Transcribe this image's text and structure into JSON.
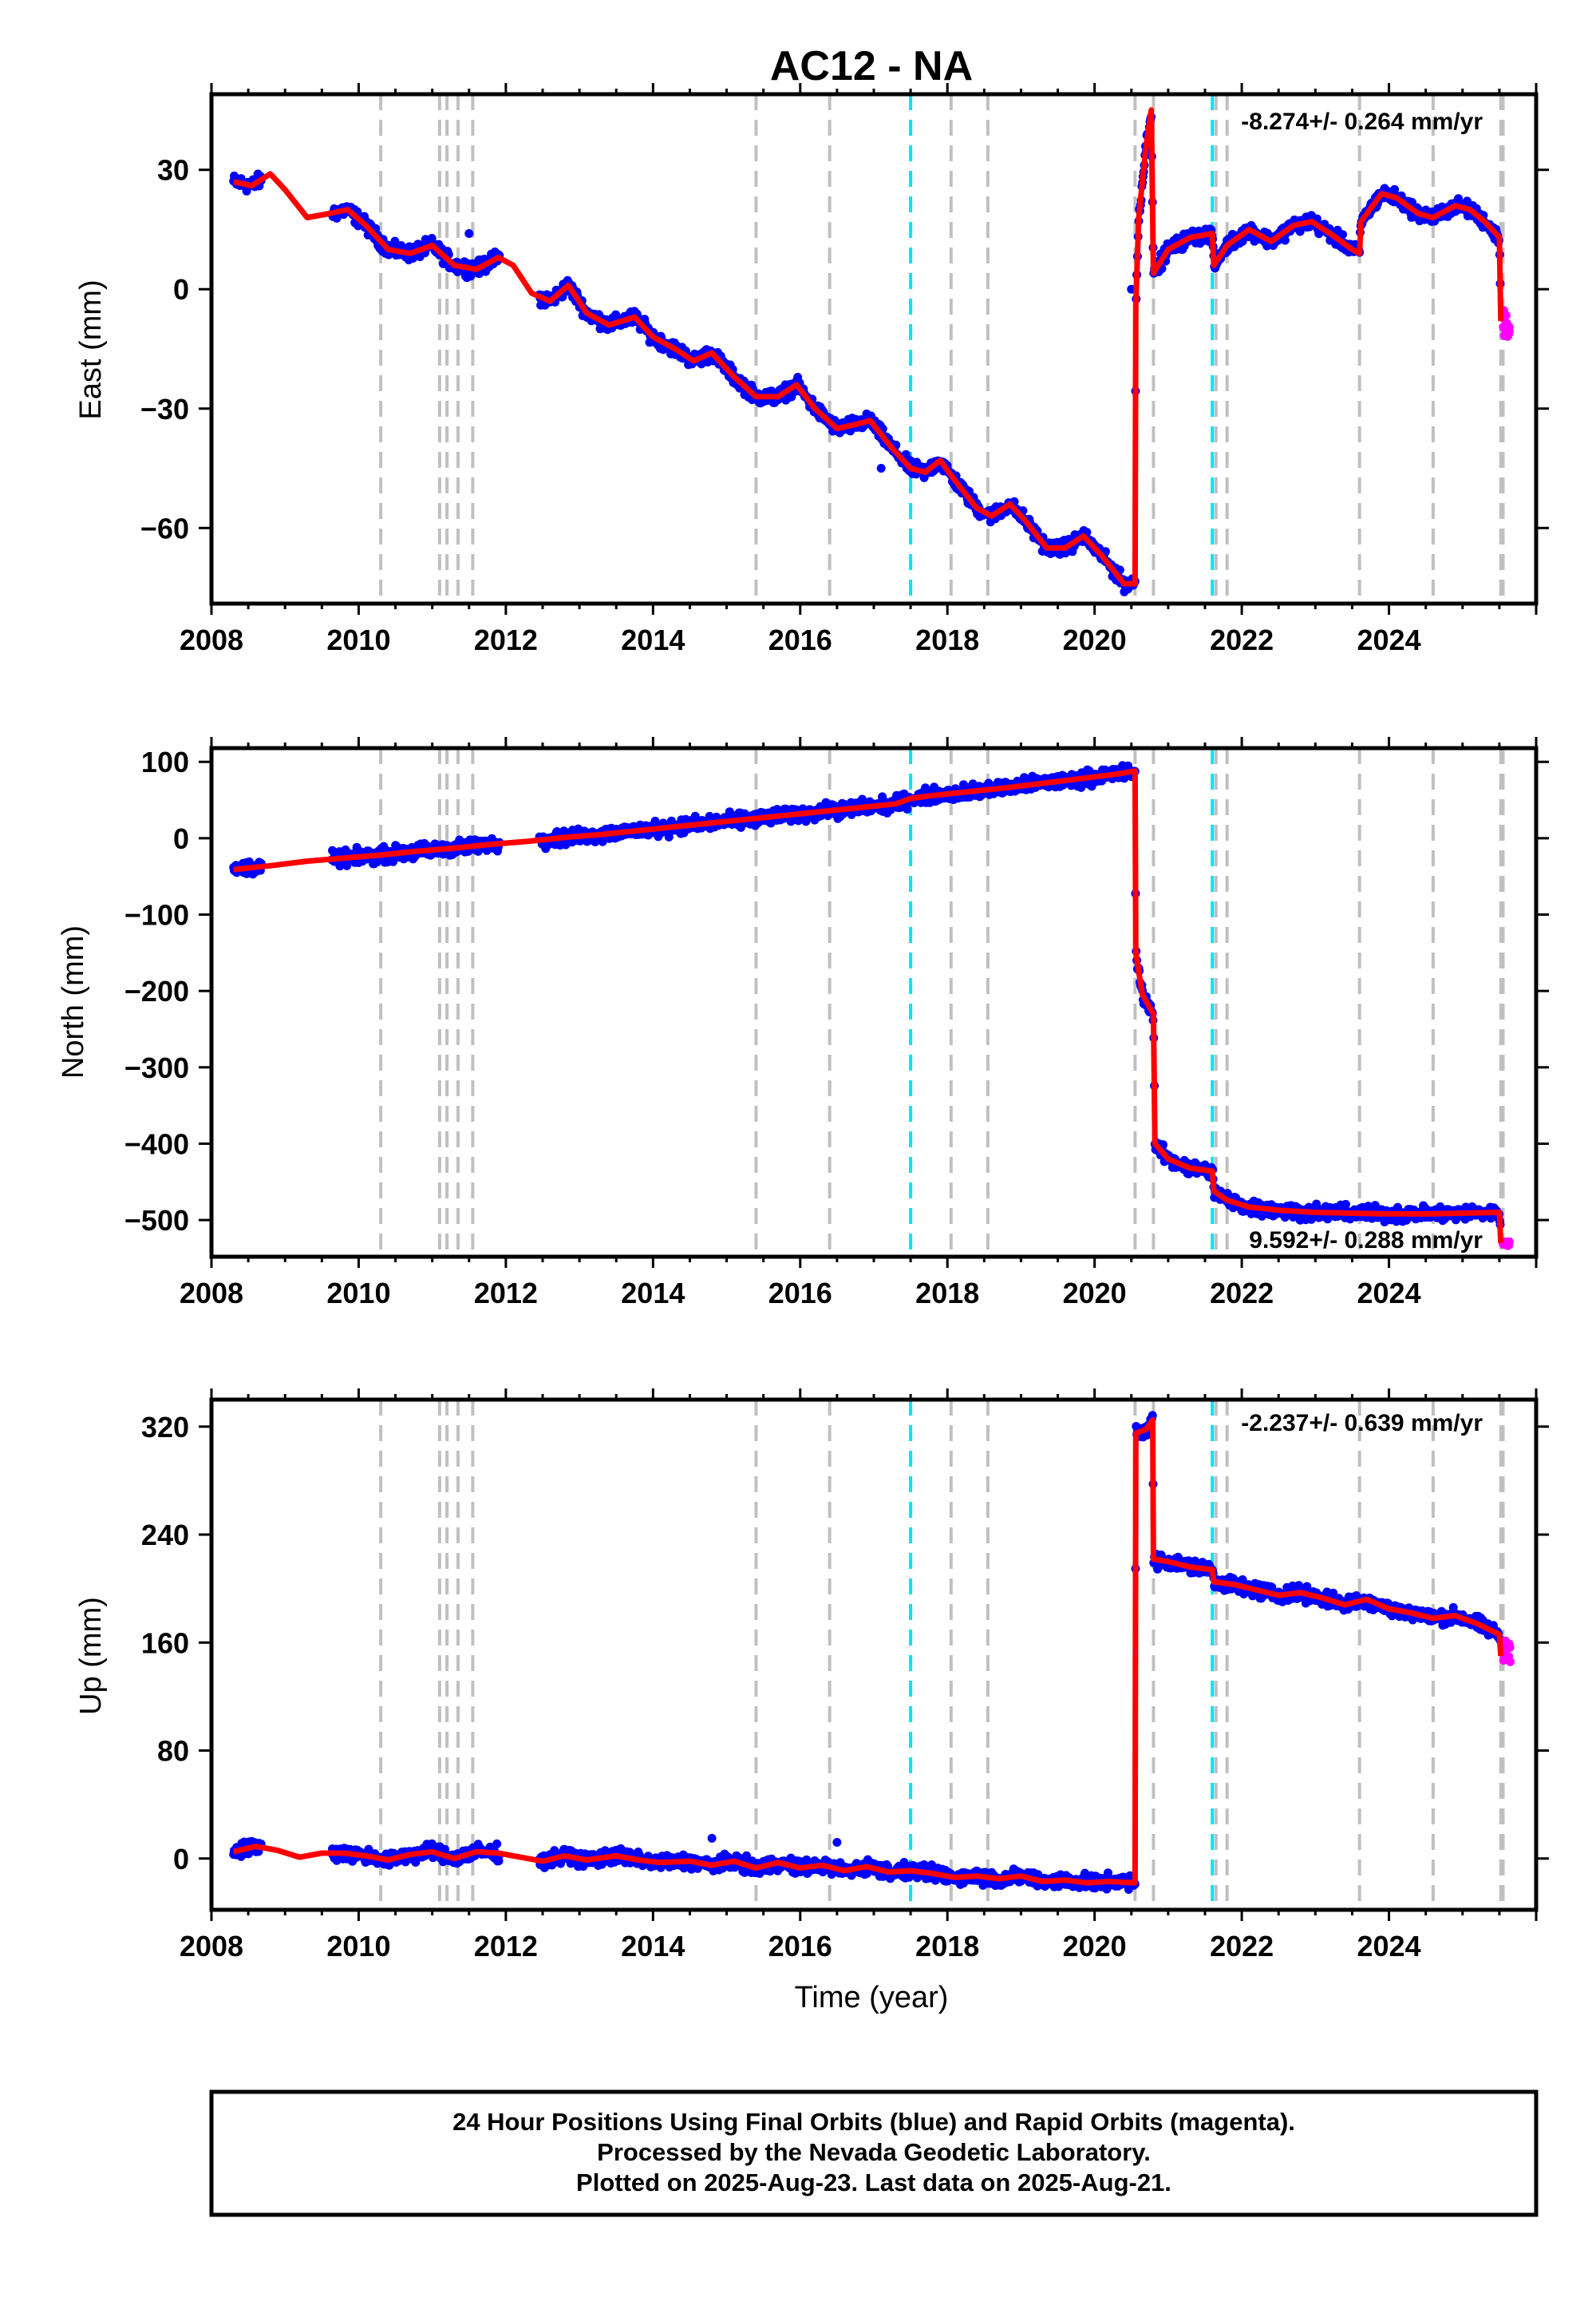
{
  "title": "AC12 - NA",
  "xlabel": "Time (year)",
  "colors": {
    "final_points": "#0000ff",
    "rapid_points": "#ff00ff",
    "model": "#ff0000",
    "event_line": "#c0c0c0",
    "eq_line": "#00e5ee"
  },
  "footer": {
    "line1": "24 Hour Positions Using Final Orbits (blue) and Rapid Orbits (magenta).",
    "line2": "Processed by the Nevada Geodetic Laboratory.",
    "line3": "Plotted on 2025-Aug-23. Last data on 2025-Aug-21."
  },
  "chart_data": [
    {
      "type": "scatter",
      "panel": "East",
      "ylabel": "East (mm)",
      "rate_text": "-8.274+/- 0.264 mm/yr",
      "rate_position": "top-right",
      "xlim": [
        2008.0,
        2026.0
      ],
      "ylim": [
        -79,
        49
      ],
      "x_ticks": [
        2008,
        2010,
        2012,
        2014,
        2016,
        2018,
        2020,
        2022,
        2024
      ],
      "y_ticks": [
        -60,
        -30,
        0,
        30
      ],
      "y_tick_labels": [
        "−60",
        "−30",
        "0",
        "30"
      ],
      "grid": false,
      "event_lines_gray": [
        2010.3,
        2011.1,
        2011.2,
        2011.35,
        2011.55,
        2015.4,
        2016.4,
        2018.05,
        2018.55,
        2020.55,
        2020.8,
        2021.65,
        2021.8,
        2023.6,
        2024.6,
        2025.52,
        2025.55
      ],
      "event_lines_cyan": [
        2017.5,
        2021.6
      ],
      "model": [
        [
          2008.3,
          27
        ],
        [
          2008.55,
          26
        ],
        [
          2008.8,
          29
        ],
        [
          2009.0,
          25
        ],
        [
          2009.3,
          18
        ],
        [
          2009.6,
          19
        ],
        [
          2009.85,
          20
        ],
        [
          2010.1,
          16
        ],
        [
          2010.4,
          10
        ],
        [
          2010.7,
          9
        ],
        [
          2011.0,
          11
        ],
        [
          2011.3,
          6
        ],
        [
          2011.6,
          5
        ],
        [
          2011.9,
          8
        ],
        [
          2012.1,
          6
        ],
        [
          2012.35,
          -1
        ],
        [
          2012.6,
          -3
        ],
        [
          2012.85,
          1
        ],
        [
          2013.1,
          -6
        ],
        [
          2013.4,
          -9
        ],
        [
          2013.75,
          -7
        ],
        [
          2014.0,
          -12
        ],
        [
          2014.3,
          -15
        ],
        [
          2014.55,
          -18
        ],
        [
          2014.8,
          -16
        ],
        [
          2015.1,
          -22
        ],
        [
          2015.4,
          -27
        ],
        [
          2015.7,
          -27
        ],
        [
          2015.95,
          -24
        ],
        [
          2016.2,
          -30
        ],
        [
          2016.5,
          -35
        ],
        [
          2016.75,
          -34
        ],
        [
          2016.95,
          -33
        ],
        [
          2017.25,
          -40
        ],
        [
          2017.5,
          -45
        ],
        [
          2017.7,
          -46
        ],
        [
          2017.9,
          -43
        ],
        [
          2018.1,
          -48
        ],
        [
          2018.4,
          -55
        ],
        [
          2018.6,
          -57
        ],
        [
          2018.85,
          -54
        ],
        [
          2019.05,
          -58
        ],
        [
          2019.35,
          -65
        ],
        [
          2019.6,
          -65
        ],
        [
          2019.85,
          -62
        ],
        [
          2020.1,
          -67
        ],
        [
          2020.4,
          -74
        ],
        [
          2020.55,
          -74
        ],
        [
          2020.56,
          -4
        ],
        [
          2020.6,
          18
        ],
        [
          2020.7,
          36
        ],
        [
          2020.77,
          45
        ],
        [
          2020.8,
          4
        ],
        [
          2021.0,
          10
        ],
        [
          2021.3,
          13
        ],
        [
          2021.6,
          14
        ],
        [
          2021.62,
          6
        ],
        [
          2021.8,
          11
        ],
        [
          2022.1,
          15
        ],
        [
          2022.4,
          12
        ],
        [
          2022.7,
          16
        ],
        [
          2022.95,
          17
        ],
        [
          2023.2,
          14
        ],
        [
          2023.5,
          10
        ],
        [
          2023.6,
          9
        ],
        [
          2023.62,
          17
        ],
        [
          2023.9,
          24
        ],
        [
          2024.1,
          23
        ],
        [
          2024.4,
          19
        ],
        [
          2024.6,
          18
        ],
        [
          2024.9,
          21
        ],
        [
          2025.1,
          20
        ],
        [
          2025.3,
          17
        ],
        [
          2025.5,
          13
        ],
        [
          2025.52,
          -8
        ]
      ],
      "rapid_x_range": [
        2025.55,
        2025.65
      ],
      "rapid_y_range": [
        -12,
        -5
      ],
      "outliers": [
        [
          2011.5,
          14
        ],
        [
          2017.1,
          -45
        ],
        [
          2020.5,
          0
        ]
      ]
    },
    {
      "type": "scatter",
      "panel": "North",
      "ylabel": "North (mm)",
      "rate_text": "9.592+/- 0.288 mm/yr",
      "rate_position": "bottom-right",
      "xlim": [
        2008.0,
        2026.0
      ],
      "ylim": [
        -548,
        118
      ],
      "x_ticks": [
        2008,
        2010,
        2012,
        2014,
        2016,
        2018,
        2020,
        2022,
        2024
      ],
      "y_ticks": [
        -500,
        -400,
        -300,
        -200,
        -100,
        0,
        100
      ],
      "y_tick_labels": [
        "−500",
        "−400",
        "−300",
        "−200",
        "−100",
        "0",
        "100"
      ],
      "grid": false,
      "event_lines_gray": [
        2010.3,
        2011.1,
        2011.2,
        2011.35,
        2011.55,
        2015.4,
        2016.4,
        2018.05,
        2018.55,
        2020.55,
        2020.8,
        2021.65,
        2021.8,
        2023.6,
        2024.6,
        2025.52,
        2025.55
      ],
      "event_lines_cyan": [
        2017.5,
        2021.6
      ],
      "model": [
        [
          2008.3,
          -41
        ],
        [
          2008.8,
          -36
        ],
        [
          2009.3,
          -30
        ],
        [
          2009.8,
          -26
        ],
        [
          2010.3,
          -22
        ],
        [
          2010.8,
          -17
        ],
        [
          2011.3,
          -13
        ],
        [
          2011.8,
          -8
        ],
        [
          2012.3,
          -4
        ],
        [
          2012.8,
          1
        ],
        [
          2013.3,
          5
        ],
        [
          2013.8,
          10
        ],
        [
          2014.3,
          15
        ],
        [
          2014.8,
          20
        ],
        [
          2015.3,
          25
        ],
        [
          2015.8,
          30
        ],
        [
          2016.3,
          35
        ],
        [
          2016.8,
          40
        ],
        [
          2017.3,
          45
        ],
        [
          2017.5,
          52
        ],
        [
          2017.8,
          56
        ],
        [
          2018.3,
          61
        ],
        [
          2018.8,
          66
        ],
        [
          2019.3,
          72
        ],
        [
          2019.8,
          78
        ],
        [
          2020.3,
          84
        ],
        [
          2020.55,
          88
        ],
        [
          2020.56,
          -150
        ],
        [
          2020.65,
          -205
        ],
        [
          2020.8,
          -230
        ],
        [
          2020.82,
          -400
        ],
        [
          2021.0,
          -420
        ],
        [
          2021.3,
          -432
        ],
        [
          2021.6,
          -436
        ],
        [
          2021.62,
          -462
        ],
        [
          2021.8,
          -474
        ],
        [
          2022.1,
          -483
        ],
        [
          2022.5,
          -487
        ],
        [
          2023.0,
          -490
        ],
        [
          2023.5,
          -491
        ],
        [
          2024.0,
          -492
        ],
        [
          2024.5,
          -492
        ],
        [
          2025.0,
          -491
        ],
        [
          2025.5,
          -490
        ],
        [
          2025.52,
          -530
        ]
      ],
      "rapid_x_range": [
        2025.55,
        2025.65
      ],
      "rapid_y_range": [
        -534,
        -528
      ],
      "outliers": []
    },
    {
      "type": "scatter",
      "panel": "Up",
      "ylabel": "Up (mm)",
      "rate_text": "-2.237+/- 0.639 mm/yr",
      "rate_position": "top-right",
      "xlim": [
        2008.0,
        2026.0
      ],
      "ylim": [
        -38,
        340
      ],
      "x_ticks": [
        2008,
        2010,
        2012,
        2014,
        2016,
        2018,
        2020,
        2022,
        2024
      ],
      "y_ticks": [
        0,
        80,
        160,
        240,
        320
      ],
      "y_tick_labels": [
        "0",
        "80",
        "160",
        "240",
        "320"
      ],
      "grid": false,
      "event_lines_gray": [
        2010.3,
        2011.1,
        2011.2,
        2011.35,
        2011.55,
        2015.4,
        2016.4,
        2018.05,
        2018.55,
        2020.55,
        2020.8,
        2021.65,
        2021.8,
        2023.6,
        2024.6,
        2025.52,
        2025.55
      ],
      "event_lines_cyan": [
        2017.5,
        2021.6
      ],
      "model": [
        [
          2008.3,
          5
        ],
        [
          2008.6,
          9
        ],
        [
          2008.9,
          6
        ],
        [
          2009.2,
          1
        ],
        [
          2009.5,
          4
        ],
        [
          2009.8,
          4
        ],
        [
          2010.1,
          2
        ],
        [
          2010.4,
          -1
        ],
        [
          2010.7,
          3
        ],
        [
          2011.0,
          5
        ],
        [
          2011.3,
          0
        ],
        [
          2011.6,
          5
        ],
        [
          2011.9,
          4
        ],
        [
          2012.2,
          1
        ],
        [
          2012.5,
          -2
        ],
        [
          2012.8,
          2
        ],
        [
          2013.1,
          -1
        ],
        [
          2013.5,
          2
        ],
        [
          2013.8,
          -1
        ],
        [
          2014.1,
          -3
        ],
        [
          2014.5,
          -2
        ],
        [
          2014.8,
          -5
        ],
        [
          2015.1,
          -2
        ],
        [
          2015.4,
          -7
        ],
        [
          2015.7,
          -3
        ],
        [
          2016.0,
          -7
        ],
        [
          2016.3,
          -5
        ],
        [
          2016.6,
          -9
        ],
        [
          2016.9,
          -6
        ],
        [
          2017.2,
          -10
        ],
        [
          2017.5,
          -9
        ],
        [
          2017.8,
          -11
        ],
        [
          2018.1,
          -14
        ],
        [
          2018.4,
          -13
        ],
        [
          2018.7,
          -15
        ],
        [
          2019.0,
          -13
        ],
        [
          2019.3,
          -17
        ],
        [
          2019.6,
          -16
        ],
        [
          2019.9,
          -18
        ],
        [
          2020.2,
          -17
        ],
        [
          2020.55,
          -18
        ],
        [
          2020.56,
          315
        ],
        [
          2020.7,
          318
        ],
        [
          2020.79,
          325
        ],
        [
          2020.8,
          222
        ],
        [
          2021.0,
          220
        ],
        [
          2021.3,
          216
        ],
        [
          2021.6,
          214
        ],
        [
          2021.62,
          205
        ],
        [
          2021.9,
          203
        ],
        [
          2022.2,
          199
        ],
        [
          2022.5,
          195
        ],
        [
          2022.8,
          197
        ],
        [
          2023.1,
          193
        ],
        [
          2023.4,
          188
        ],
        [
          2023.7,
          192
        ],
        [
          2024.0,
          185
        ],
        [
          2024.3,
          182
        ],
        [
          2024.6,
          178
        ],
        [
          2024.9,
          180
        ],
        [
          2025.2,
          174
        ],
        [
          2025.5,
          166
        ],
        [
          2025.52,
          150
        ]
      ],
      "rapid_x_range": [
        2025.55,
        2025.65
      ],
      "rapid_y_range": [
        144,
        162
      ],
      "outliers": [
        [
          2016.5,
          12
        ],
        [
          2014.8,
          15
        ]
      ]
    }
  ]
}
